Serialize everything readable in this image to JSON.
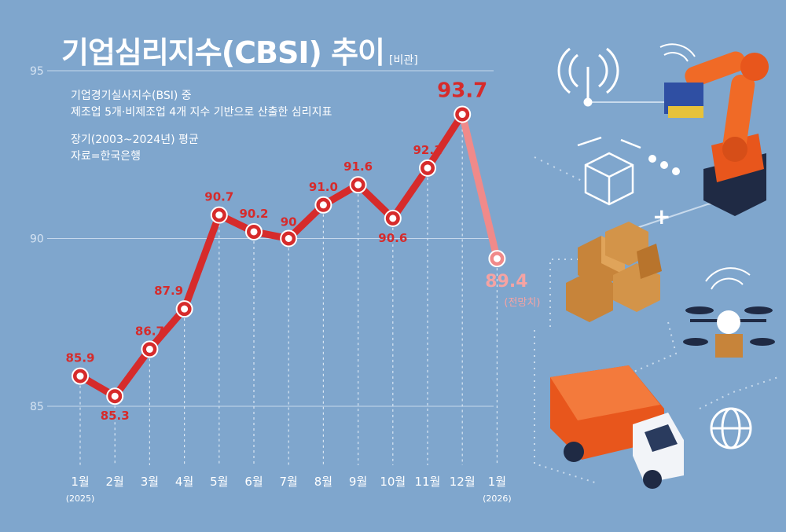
{
  "header": {
    "title_main": "기업심리지수",
    "title_paren": "(CBSI)",
    "title_tail": " 추이",
    "unit": "[비관]"
  },
  "notes": {
    "line1": "기업경기실사지수(BSI) 중",
    "line2": "제조업 5개·비제조업 4개 지수 기반으로 산출한 심리지표",
    "line3": "장기(2003~2024년) 평균",
    "line4": "자료=한국은행"
  },
  "chart_data": {
    "type": "line",
    "categories": [
      "1월",
      "2월",
      "3월",
      "4월",
      "5월",
      "6월",
      "7월",
      "8월",
      "9월",
      "10월",
      "11월",
      "12월",
      "1월"
    ],
    "category_sub": [
      "(2025)",
      "",
      "",
      "",
      "",
      "",
      "",
      "",
      "",
      "",
      "",
      "",
      "(2026)"
    ],
    "values": [
      85.9,
      85.3,
      86.7,
      87.9,
      90.7,
      90.2,
      90,
      91.0,
      91.6,
      90.6,
      92.1,
      93.7,
      89.4
    ],
    "value_labels": [
      "85.9",
      "85.3",
      "86.7",
      "87.9",
      "90.7",
      "90.2",
      "90",
      "91.0",
      "91.6",
      "90.6",
      "92.1",
      "93.7",
      "89.4"
    ],
    "forecast_index": 12,
    "forecast_label": "(전망치)",
    "highlight_index": 11,
    "yticks": [
      85,
      90,
      95
    ],
    "ylim": [
      84.5,
      95
    ],
    "colors": {
      "line": "#d62b2b",
      "forecast": "#f08a8a",
      "label": "#d62b2b",
      "forecast_label": "#f5a3a3"
    }
  }
}
